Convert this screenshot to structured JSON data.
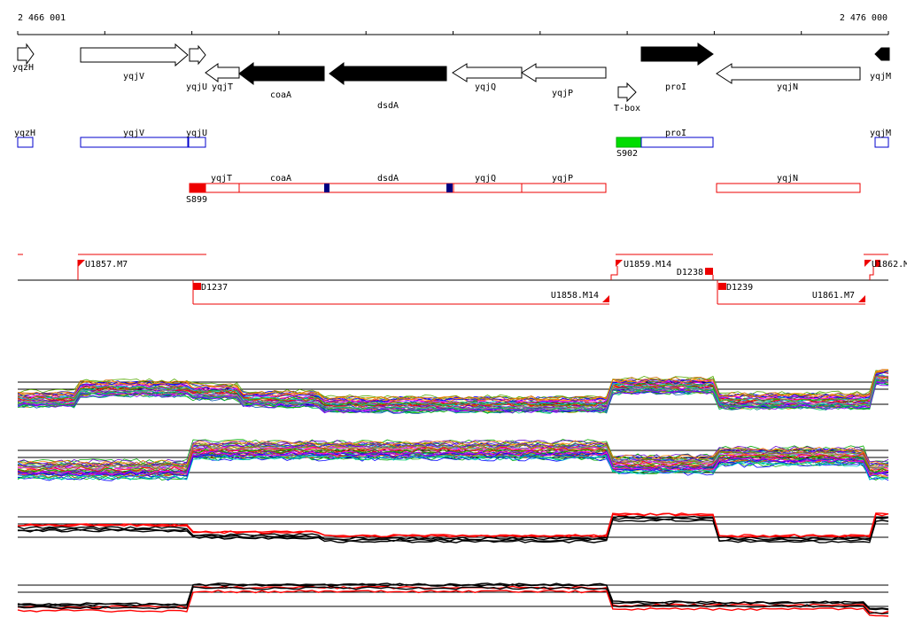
{
  "ruler": {
    "start_label": "2 466 001",
    "end_label": "2 476 000"
  },
  "colors": {
    "feature_fill": "#ffffff",
    "feature_stroke": "#000000",
    "highlight": "#000000",
    "gene_box": "#0000cc",
    "operon": "#ee0000",
    "terminator": "#000080",
    "promoter": "#00dd00",
    "profile_black": "#000000",
    "profile_red": "#ff0000"
  },
  "genes": [
    {
      "id": "yqzH",
      "label": "yqzH",
      "dir": "right",
      "filled": false
    },
    {
      "id": "yqjV",
      "label": "yqjV",
      "dir": "right",
      "filled": false
    },
    {
      "id": "yqjU",
      "label": "yqjU",
      "dir": "right",
      "filled": false
    },
    {
      "id": "yqjT",
      "label": "yqjT",
      "dir": "left",
      "filled": false
    },
    {
      "id": "coaA",
      "label": "coaA",
      "dir": "left",
      "filled": true
    },
    {
      "id": "dsdA",
      "label": "dsdA",
      "dir": "left",
      "filled": true
    },
    {
      "id": "yqjQ",
      "label": "yqjQ",
      "dir": "left",
      "filled": false
    },
    {
      "id": "yqjP",
      "label": "yqjP",
      "dir": "left",
      "filled": false
    },
    {
      "id": "T-box",
      "label": "T-box",
      "dir": "right",
      "filled": false
    },
    {
      "id": "proI",
      "label": "proI",
      "dir": "right",
      "filled": true
    },
    {
      "id": "yqjN",
      "label": "yqjN",
      "dir": "left",
      "filled": false
    },
    {
      "id": "yqjM",
      "label": "yqjM",
      "dir": "left",
      "filled": true
    }
  ],
  "gene_boxes": [
    {
      "label": "yqzH"
    },
    {
      "label": "yqjV"
    },
    {
      "label": "yqjU"
    },
    {
      "label": "proI"
    },
    {
      "label": "yqjM"
    }
  ],
  "promoters": [
    {
      "label": "S902"
    }
  ],
  "operons": [
    {
      "segments": [
        "yqjT",
        "coaA",
        "dsdA",
        "yqjQ",
        "yqjP"
      ],
      "start_site": "S899"
    },
    {
      "segments": [
        "yqjN"
      ]
    }
  ],
  "transcription_units": [
    {
      "label": "U1857.M7"
    },
    {
      "label": "U1859.M14"
    },
    {
      "label": "D1238"
    },
    {
      "label": "D1237"
    },
    {
      "label": "D1239"
    },
    {
      "label": "U1858.M14"
    },
    {
      "label": "U1861.M7"
    },
    {
      "label": "U1862.M"
    }
  ],
  "profile_panels": [
    {
      "id": "panel-1",
      "kind": "multi-color"
    },
    {
      "id": "panel-2",
      "kind": "multi-color"
    },
    {
      "id": "panel-3",
      "kind": "black-red"
    },
    {
      "id": "panel-4",
      "kind": "black-red"
    }
  ]
}
